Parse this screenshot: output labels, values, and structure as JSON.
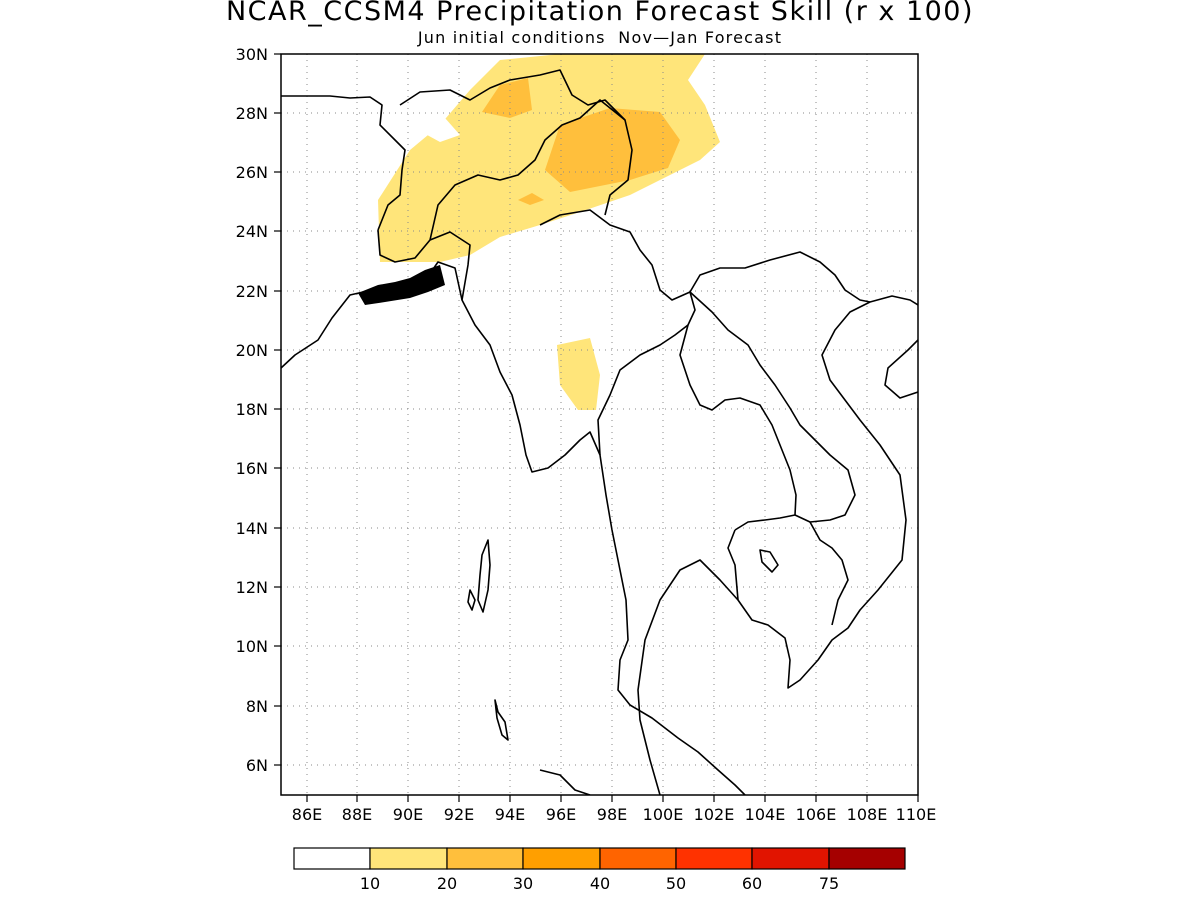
{
  "title": "NCAR_CCSM4 Precipitation Forecast Skill (r x 100)",
  "subtitle": "Jun initial conditions  Nov—Jan Forecast",
  "lat_labels": [
    "30N",
    "28N",
    "26N",
    "24N",
    "22N",
    "20N",
    "18N",
    "16N",
    "14N",
    "12N",
    "10N",
    "8N",
    "6N"
  ],
  "lon_labels": [
    "86E",
    "88E",
    "90E",
    "92E",
    "94E",
    "96E",
    "98E",
    "100E",
    "102E",
    "104E",
    "106E",
    "108E",
    "110E"
  ],
  "colorbar": {
    "colors": [
      "#ffffff",
      "#ffe57a",
      "#ffbf3c",
      "#ff9f00",
      "#ff6400",
      "#ff3200",
      "#e11400",
      "#a50000"
    ],
    "labels": [
      "10",
      "20",
      "30",
      "40",
      "50",
      "60",
      "75"
    ]
  },
  "chart_data": {
    "type": "map",
    "title": "NCAR_CCSM4 Precipitation Forecast Skill (r x 100)",
    "subtitle": "Jun initial conditions  Nov—Jan Forecast",
    "lon_range": [
      85,
      110
    ],
    "lat_range": [
      5,
      30
    ],
    "grid": true,
    "contour_levels": [
      10,
      20,
      30,
      40,
      50,
      60,
      75
    ],
    "regions": [
      {
        "level": "10-20",
        "color": "#ffe57a",
        "approx_extent": {
          "lon": [
            89,
            102
          ],
          "lat": [
            23,
            30
          ]
        }
      },
      {
        "level": "20-30",
        "color": "#ffbf3c",
        "approx_extent": {
          "lon": [
            93.5,
            95.5
          ],
          "lat": [
            27.5,
            28.6
          ]
        }
      },
      {
        "level": "20-30",
        "color": "#ffbf3c",
        "approx_extent": {
          "lon": [
            96,
            100.5
          ],
          "lat": [
            25.5,
            27.5
          ]
        }
      },
      {
        "level": "10-20",
        "color": "#ffe57a",
        "approx_extent": {
          "lon": [
            96,
            97.5
          ],
          "lat": [
            18,
            20.3
          ]
        }
      }
    ]
  }
}
